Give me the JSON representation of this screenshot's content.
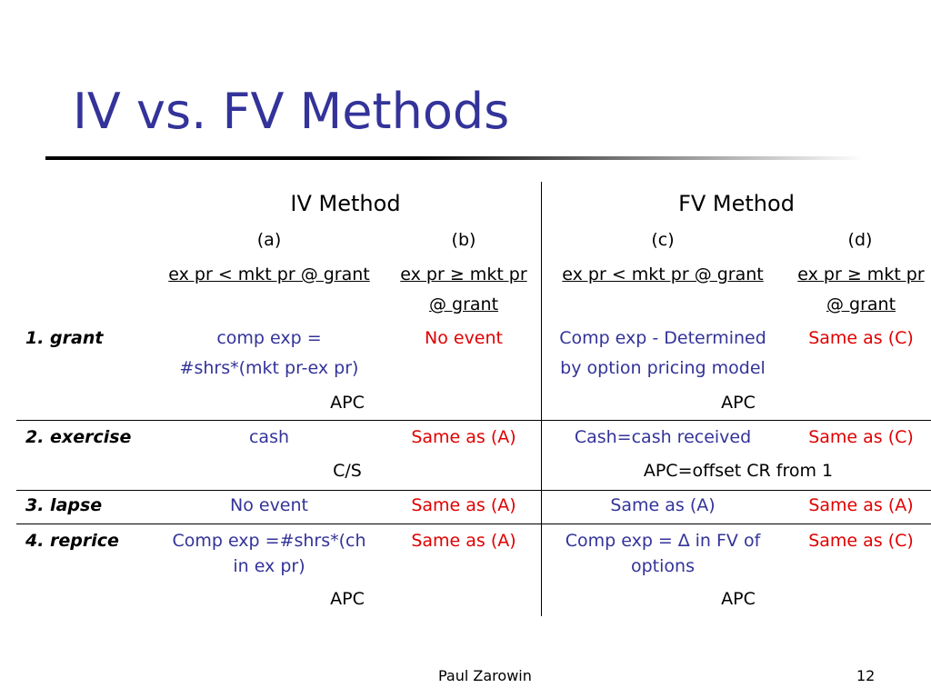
{
  "slide": {
    "title": "IV vs. FV Methods",
    "footer_author": "Paul Zarowin",
    "page_number": "12"
  },
  "table": {
    "methods": [
      "IV Method",
      "FV Method"
    ],
    "columns": [
      {
        "letter": "(a)",
        "cond1": "ex pr < mkt pr @ grant",
        "cond2": ""
      },
      {
        "letter": "(b)",
        "cond1": "ex pr ≥ mkt pr",
        "cond2": "@ grant"
      },
      {
        "letter": "(c)",
        "cond1": "ex pr < mkt pr @ grant",
        "cond2": ""
      },
      {
        "letter": "(d)",
        "cond1": "ex pr ≥ mkt pr",
        "cond2": "@ grant"
      }
    ],
    "rows": [
      {
        "label": "1. grant",
        "a": [
          "comp exp =",
          "#shrs*(mkt pr-ex pr)"
        ],
        "b": "No event",
        "c": [
          "Comp exp - Determined",
          "by option pricing model"
        ],
        "d": "Same as (C)",
        "iv_note": "APC",
        "fv_note": "APC"
      },
      {
        "label": "2. exercise",
        "a": [
          "cash"
        ],
        "b": "Same as (A)",
        "c": [
          "Cash=cash received"
        ],
        "d": "Same as (C)",
        "iv_note": "C/S",
        "fv_note": "APC=offset CR from 1"
      },
      {
        "label": "3. lapse",
        "a": [
          "No event"
        ],
        "b": "Same as (A)",
        "c": [
          "Same as (A)"
        ],
        "d": "Same as (A)",
        "iv_note": "",
        "fv_note": ""
      },
      {
        "label": "4. reprice",
        "a": [
          "Comp exp =#shrs*(ch",
          "in ex pr)"
        ],
        "b": "Same as (A)",
        "c": [
          "Comp exp = ∆ in FV of",
          "options"
        ],
        "d": "Same as (C)",
        "iv_note": "APC",
        "fv_note": "APC"
      }
    ]
  },
  "colors": {
    "title": "#33339a",
    "iv_fv_text": "#33339a",
    "same_as": "#e00000"
  }
}
